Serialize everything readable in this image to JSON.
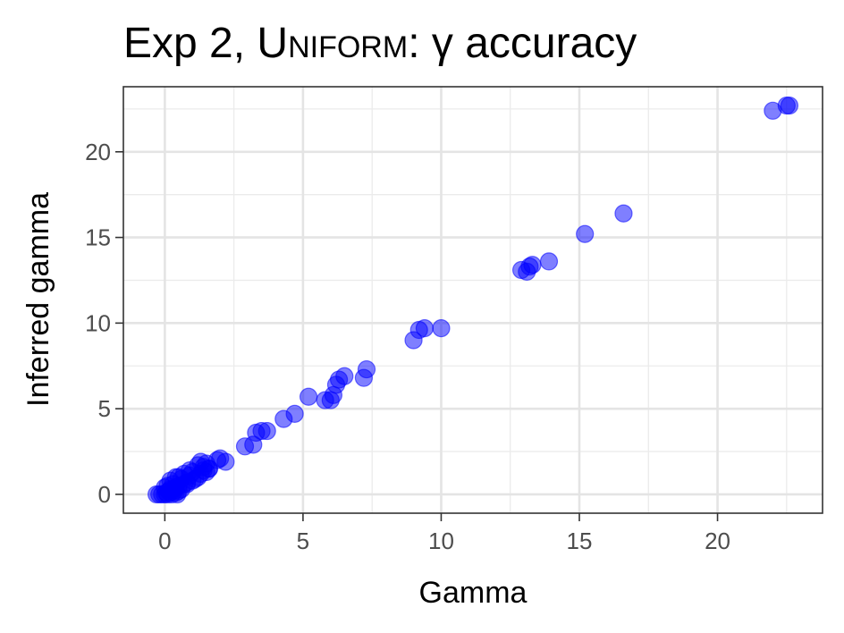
{
  "chart_data": {
    "type": "scatter",
    "title": "Exp 2, Uniform: γ accuracy",
    "title_parts": {
      "prefix": "Exp 2, ",
      "emph": "Uniform",
      "suffix": ": γ accuracy"
    },
    "xlabel": "Gamma",
    "ylabel": "Inferred gamma",
    "xlim": [
      -1.5,
      23.8
    ],
    "ylim": [
      -1.1,
      23.8
    ],
    "x_ticks": [
      0,
      5,
      10,
      15,
      20
    ],
    "y_ticks": [
      0,
      5,
      10,
      15,
      20
    ],
    "x_tick_labels": [
      "0",
      "5",
      "10",
      "15",
      "20"
    ],
    "y_tick_labels": [
      "0",
      "5",
      "10",
      "15",
      "20"
    ],
    "grid": true,
    "legend": "none",
    "point_color": "#0000ff",
    "point_alpha": 0.5,
    "series": [
      {
        "x": [
          -0.3,
          -0.2,
          -0.1,
          0.0,
          0.05,
          0.1,
          0.15,
          0.2,
          0.25,
          0.3,
          0.35,
          0.4,
          0.45,
          0.5,
          0.0,
          0.1,
          0.2,
          0.3,
          0.4,
          0.5,
          0.6,
          0.7,
          0.2,
          0.4,
          0.6,
          0.8,
          0.9,
          1.0,
          0.5,
          0.7,
          0.8,
          0.9,
          1.0,
          1.1,
          1.2,
          1.3,
          1.4,
          1.5,
          1.6,
          1.2,
          1.3,
          1.4,
          1.5,
          1.6,
          1.9,
          2.2,
          2.0,
          2.9,
          3.2,
          3.3,
          3.5,
          3.7,
          4.3,
          4.7,
          5.2,
          5.8,
          6.0,
          6.1,
          6.2,
          6.3,
          6.5,
          7.2,
          7.3,
          9.0,
          9.2,
          9.4,
          10.0,
          12.9,
          13.1,
          13.2,
          13.3,
          13.9,
          15.2,
          16.6,
          22.0,
          22.5,
          22.6
        ],
        "y": [
          0.0,
          0.0,
          0.0,
          0.0,
          0.1,
          0.0,
          0.2,
          0.1,
          0.0,
          0.3,
          0.2,
          0.1,
          0.0,
          0.2,
          0.4,
          0.5,
          0.3,
          0.6,
          0.4,
          0.5,
          0.3,
          0.6,
          0.8,
          1.0,
          0.9,
          0.7,
          1.1,
          1.3,
          1.0,
          1.2,
          0.6,
          1.4,
          0.8,
          0.9,
          1.0,
          1.2,
          1.4,
          1.3,
          1.5,
          1.7,
          1.9,
          1.6,
          1.8,
          1.5,
          2.0,
          1.9,
          2.1,
          2.8,
          2.9,
          3.6,
          3.7,
          3.7,
          4.4,
          4.7,
          5.7,
          5.5,
          5.5,
          5.8,
          6.4,
          6.7,
          6.9,
          6.8,
          7.3,
          9.0,
          9.6,
          9.7,
          9.7,
          13.1,
          13.0,
          13.3,
          13.4,
          13.6,
          15.2,
          16.4,
          22.4,
          22.7,
          22.7
        ]
      }
    ]
  }
}
